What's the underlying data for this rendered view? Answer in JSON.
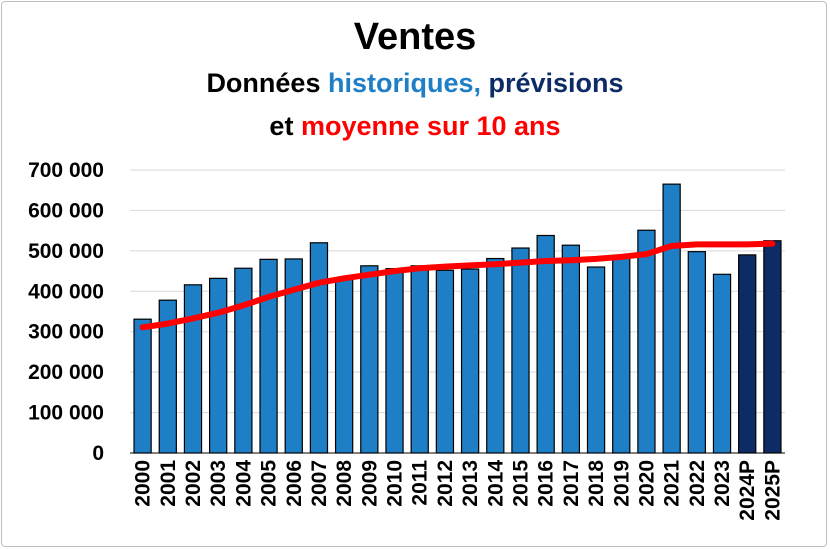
{
  "chart_data": {
    "type": "bar",
    "title": "Ventes",
    "subtitle_parts": [
      {
        "text": "Données ",
        "color": "#000000"
      },
      {
        "text": "historiques,",
        "color": "#1f7fc6"
      },
      {
        "text": " prévisions",
        "color": "#0d2c66"
      }
    ],
    "subtitle2_parts": [
      {
        "text": "et ",
        "color": "#000000"
      },
      {
        "text": "moyenne sur 10 ans",
        "color": "#ff0000"
      }
    ],
    "categories": [
      "2000",
      "2001",
      "2002",
      "2003",
      "2004",
      "2005",
      "2006",
      "2007",
      "2008",
      "2009",
      "2010",
      "2011",
      "2012",
      "2013",
      "2014",
      "2015",
      "2016",
      "2017",
      "2018",
      "2019",
      "2020",
      "2021",
      "2022",
      "2023",
      "2024P",
      "2025P"
    ],
    "ytick_labels": [
      "0",
      "100 000",
      "200 000",
      "300 000",
      "400 000",
      "500 000",
      "600 000",
      "700 000"
    ],
    "ylim": [
      0,
      700000
    ],
    "grid": true,
    "series": [
      {
        "kind": "bar",
        "values": [
          331000,
          378000,
          416000,
          432000,
          457000,
          479000,
          480000,
          520000,
          430000,
          463000,
          456000,
          463000,
          452000,
          455000,
          481000,
          507000,
          538000,
          514000,
          460000,
          489000,
          551000,
          665000,
          498000,
          442000,
          490000,
          525000
        ],
        "forecast_from_index": 24,
        "color": "#1f7fc6",
        "forecast_color": "#0d2c66"
      },
      {
        "kind": "line",
        "values": [
          311000,
          320000,
          333000,
          347000,
          365000,
          386000,
          404000,
          421000,
          432000,
          441000,
          450000,
          457000,
          461000,
          464000,
          467000,
          471000,
          475000,
          477000,
          480000,
          485000,
          492000,
          512000,
          516000,
          516000,
          516000,
          518000
        ],
        "color": "#ff0000"
      }
    ]
  }
}
